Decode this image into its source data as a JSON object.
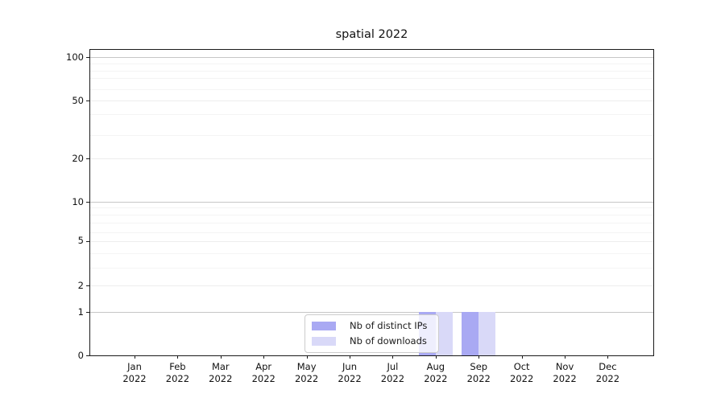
{
  "chart_data": {
    "type": "bar",
    "title": "spatial 2022",
    "categories": [
      "Jan",
      "Feb",
      "Mar",
      "Apr",
      "May",
      "Jun",
      "Jul",
      "Aug",
      "Sep",
      "Oct",
      "Nov",
      "Dec"
    ],
    "category_year": "2022",
    "series": [
      {
        "name": "Nb of distinct IPs",
        "color": "#a9a9f3",
        "values": [
          0,
          0,
          0,
          0,
          0,
          0,
          0,
          1,
          1,
          0,
          0,
          0
        ]
      },
      {
        "name": "Nb of downloads",
        "color": "#d9d9f8",
        "values": [
          0,
          0,
          0,
          0,
          0,
          0,
          0,
          1,
          1,
          0,
          0,
          0
        ]
      }
    ],
    "yticks": [
      0,
      1,
      2,
      5,
      10,
      20,
      50,
      100
    ],
    "minor_yticks": [
      3,
      4,
      6,
      7,
      8,
      9,
      30,
      40,
      60,
      70,
      80,
      90
    ],
    "ylim": [
      0,
      140
    ],
    "yscale": "symlog",
    "grid": true,
    "legend": {
      "position": "lower center"
    }
  }
}
